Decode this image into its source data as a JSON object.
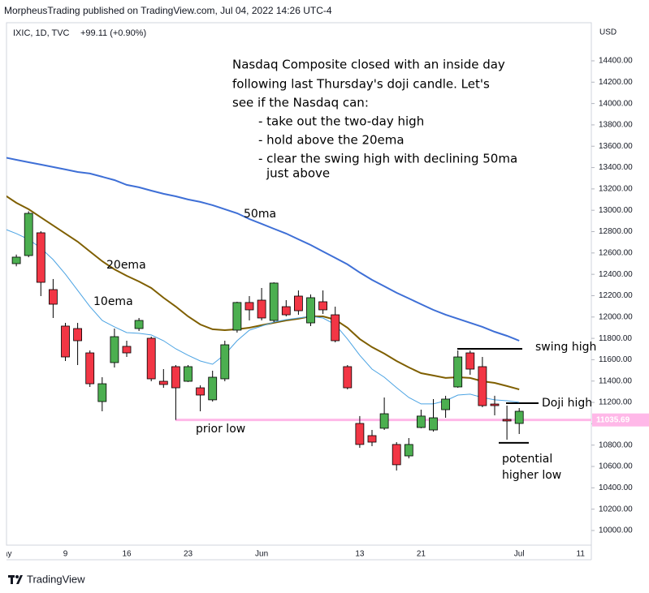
{
  "header": "MorpheusTrading published on TradingView.com, Jul 04, 2022 14:26 UTC-4",
  "footer": "TradingView",
  "chart_data": {
    "type": "candlestick",
    "symbol": "IXIC, 1D, TVC",
    "change": "+99.11 (+0.90%)",
    "currency": "USD",
    "categories": [
      "May",
      null,
      null,
      null,
      null,
      "9",
      null,
      null,
      null,
      null,
      "16",
      null,
      null,
      null,
      null,
      "23",
      null,
      null,
      null,
      null,
      null,
      "Jun",
      null,
      null,
      null,
      null,
      null,
      null,
      null,
      "13",
      null,
      null,
      null,
      null,
      "21",
      null,
      null,
      null,
      null,
      null,
      null,
      null,
      "Jul",
      null,
      null,
      null,
      null,
      "11"
    ],
    "up_color": "#4caf50",
    "down_color": "#f23645",
    "ohlc": {
      "open": [
        null,
        12500,
        12576,
        12789,
        12257,
        11915,
        11892,
        11664,
        11208,
        11573,
        11725,
        11892,
        11801,
        11398,
        11535,
        11398,
        11337,
        11224,
        11421,
        11877,
        12136,
        12158,
        11968,
        12097,
        12196,
        11945,
        12143,
        12021,
        11535,
        11003,
        10889,
        10958,
        10806,
        10699,
        10965,
        10942,
        11132,
        11345,
        11664,
        11535,
        11185,
        11041,
        11003,
        null,
        null,
        null,
        null,
        null
      ],
      "high": [
        null,
        12585,
        12990,
        12804,
        12356,
        11945,
        11945,
        11687,
        11436,
        11892,
        11778,
        11991,
        11816,
        11512,
        11550,
        11550,
        11360,
        11497,
        11778,
        12143,
        12196,
        12272,
        12325,
        12158,
        12249,
        12211,
        12249,
        12097,
        11550,
        11072,
        10942,
        11246,
        10828,
        10866,
        11132,
        11231,
        11262,
        11687,
        11687,
        11626,
        11262,
        11170,
        11147,
        null,
        null,
        null,
        null,
        null
      ],
      "low": [
        null,
        12475,
        12560,
        12196,
        11991,
        11588,
        11550,
        11345,
        11117,
        11527,
        11626,
        11869,
        11398,
        11337,
        11036,
        11391,
        11117,
        11208,
        11398,
        11854,
        11968,
        11968,
        11953,
        12006,
        12021,
        11915,
        12029,
        11763,
        11322,
        10775,
        10790,
        10942,
        10562,
        10676,
        10958,
        10927,
        11056,
        11337,
        11459,
        11155,
        11079,
        10851,
        10904,
        null,
        null,
        null,
        null,
        null
      ],
      "close": [
        null,
        12561,
        12971,
        12325,
        12120,
        11626,
        11778,
        11375,
        11375,
        11816,
        11664,
        11968,
        11421,
        11368,
        11337,
        11535,
        11269,
        11436,
        11740,
        12136,
        12067,
        11991,
        12318,
        12021,
        12059,
        12181,
        12067,
        11778,
        11337,
        10806,
        10828,
        11094,
        10616,
        10806,
        11072,
        11056,
        11231,
        11626,
        11512,
        11170,
        11170,
        11026,
        11117,
        null,
        null,
        null,
        null,
        null
      ]
    },
    "series": [
      {
        "name": "50ma",
        "color": "#3e6fd6",
        "values": [
          13496,
          13473,
          13450,
          13428,
          13405,
          13382,
          13359,
          13344,
          13314,
          13283,
          13238,
          13215,
          13184,
          13154,
          13131,
          13101,
          13078,
          13048,
          13010,
          12972,
          12918,
          12873,
          12827,
          12782,
          12728,
          12675,
          12614,
          12554,
          12493,
          12417,
          12348,
          12288,
          12227,
          12174,
          12120,
          12067,
          12022,
          11984,
          11946,
          11908,
          11862,
          11824,
          11778,
          null,
          null,
          null,
          null,
          null
        ]
      },
      {
        "name": "20ema",
        "color": "#7f5f00",
        "values": [
          13146,
          13070,
          13010,
          12934,
          12858,
          12782,
          12706,
          12614,
          12523,
          12447,
          12386,
          12333,
          12272,
          12181,
          12098,
          12006,
          11930,
          11885,
          11877,
          11885,
          11900,
          11923,
          11946,
          11968,
          11984,
          12006,
          12006,
          11976,
          11900,
          11794,
          11718,
          11657,
          11588,
          11528,
          11474,
          11452,
          11429,
          11436,
          11429,
          11398,
          11383,
          11353,
          11322,
          null,
          null,
          null,
          null,
          null
        ]
      },
      {
        "name": "10ema",
        "color": "#4ba3e3",
        "values": [
          12827,
          12782,
          12728,
          12645,
          12538,
          12402,
          12250,
          12098,
          11968,
          11908,
          11854,
          11847,
          11832,
          11778,
          11702,
          11642,
          11588,
          11558,
          11649,
          11778,
          11877,
          11915,
          11953,
          11976,
          11991,
          12006,
          11991,
          11930,
          11794,
          11642,
          11512,
          11436,
          11338,
          11246,
          11186,
          11186,
          11216,
          11269,
          11277,
          11246,
          11224,
          11216,
          11201,
          null,
          null,
          null,
          null,
          null
        ]
      }
    ],
    "levels": [
      {
        "value": 11035.69,
        "label": "11035.69",
        "color": "#ffb8e8"
      },
      {
        "value": 11702,
        "color": "#000000"
      },
      {
        "value": 11193,
        "color": "#000000"
      },
      {
        "value": 10821,
        "color": "#000000"
      }
    ],
    "annotations": [
      "Nasdaq Composite closed with an inside day",
      "following last Thursday's doji candle.  Let's",
      "see if the Nasdaq can:",
      "- take out the two-day high",
      "- hold above the 20ema",
      "- clear the swing high with declining 50ma",
      "just above",
      "prior low",
      "swing high",
      "Doji high",
      "potential",
      "higher low"
    ],
    "ylim": [
      9863,
      14757
    ],
    "yticks": [
      {
        "value": 10000,
        "label": "10000.00"
      },
      {
        "value": 10200,
        "label": "10200.00"
      },
      {
        "value": 10400,
        "label": "10400.00"
      },
      {
        "value": 10600,
        "label": "10600.00"
      },
      {
        "value": 10800,
        "label": "10800.00"
      },
      {
        "value": 11000,
        "label": "11000.00"
      },
      {
        "value": 11200,
        "label": "11200.00"
      },
      {
        "value": 11400,
        "label": "11400.00"
      },
      {
        "value": 11600,
        "label": "11600.00"
      },
      {
        "value": 11800,
        "label": "11800.00"
      },
      {
        "value": 12000,
        "label": "12000.00"
      },
      {
        "value": 12200,
        "label": "12200.00"
      },
      {
        "value": 12400,
        "label": "12400.00"
      },
      {
        "value": 12600,
        "label": "12600.00"
      },
      {
        "value": 12800,
        "label": "12800.00"
      },
      {
        "value": 13000,
        "label": "13000.00"
      },
      {
        "value": 13200,
        "label": "13200.00"
      },
      {
        "value": 13400,
        "label": "13400.00"
      },
      {
        "value": 13600,
        "label": "13600.00"
      },
      {
        "value": 13800,
        "label": "13800.00"
      },
      {
        "value": 14000,
        "label": "14000.00"
      },
      {
        "value": 14200,
        "label": "14200.00"
      },
      {
        "value": 14400,
        "label": "14400.00"
      }
    ],
    "grid": false
  }
}
